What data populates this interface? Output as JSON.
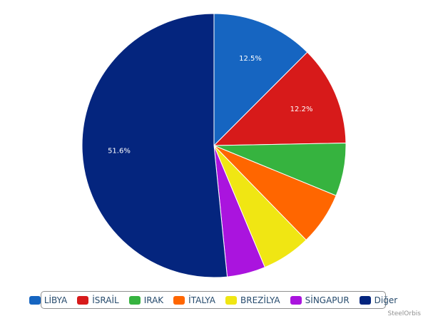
{
  "chart_data": {
    "type": "pie",
    "categories": [
      "LİBYA",
      "İSRAİL",
      "IRAK",
      "İTALYA",
      "BREZİLYA",
      "SİNGAPUR",
      "Diğer"
    ],
    "values": [
      12.5,
      12.2,
      6.5,
      6.5,
      6.0,
      4.7,
      51.6
    ],
    "colors": [
      "#1665c1",
      "#d71a1a",
      "#36b33f",
      "#ff6600",
      "#f0e613",
      "#aa14de",
      "#04257e"
    ],
    "data_labels": [
      "12.5%",
      "12.2%",
      "",
      "",
      "",
      "",
      "51.6%"
    ],
    "legend_placement": "bottom"
  },
  "credits": "SteelOrbis"
}
